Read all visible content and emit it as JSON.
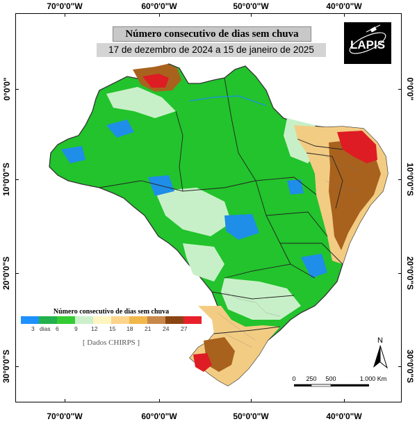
{
  "title": "Número consecutivo de dias sem chuva",
  "subtitle": "17 de dezembro de 2024 a 15 de janeiro de 2025",
  "logo_text": "LAPIS",
  "longitudes": [
    "70°0'0\"W",
    "60°0'0\"W",
    "50°0'0\"W",
    "40°0'0\"W"
  ],
  "latitudes": [
    "0°0'0\"",
    "10°0'0\"S",
    "20°0'0\"S",
    "30°0'0\"S"
  ],
  "legend": {
    "title": "Número consecutivo de dias sem chuva",
    "labels": [
      "3",
      "dias",
      "6",
      "9",
      "12",
      "15",
      "18",
      "21",
      "24",
      "27"
    ],
    "colors": [
      "#1e90ff",
      "#22b14c",
      "#33cc33",
      "#ccf0cc",
      "#fff5c0",
      "#fcd48c",
      "#f0b84a",
      "#c8884a",
      "#8b4513",
      "#e8202a"
    ],
    "source": "[ Dados CHIRPS ]"
  },
  "north_label": "N",
  "scale": {
    "labels": [
      "0",
      "250",
      "500",
      "1.000 Km"
    ]
  },
  "colors": {
    "water": "#ffffff",
    "land_green": "#22c32c",
    "land_light": "#c8f0c8",
    "dry_brown": "#9a5a1c",
    "dry_red": "#dd1c24",
    "blue": "#1e8ee8"
  }
}
